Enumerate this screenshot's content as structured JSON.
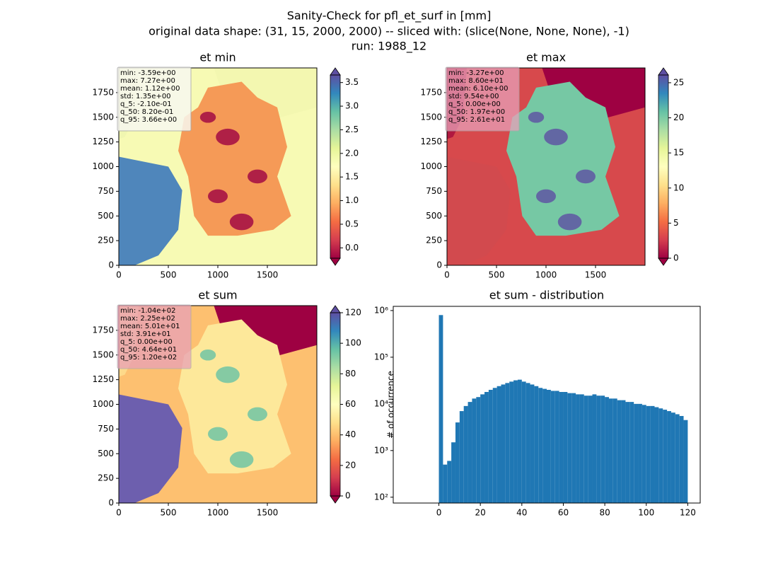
{
  "title": [
    "Sanity-Check for pfl_et_surf in [mm]",
    "original data shape: (31, 15, 2000, 2000) -- sliced with: (slice(None, None, None), -1)",
    "run: 1988_12"
  ],
  "chart_data": [
    {
      "type": "heatmap",
      "title": "et min",
      "colormap": "Spectral",
      "extend": "both",
      "xlim": [
        0,
        2000
      ],
      "ylim": [
        0,
        2000
      ],
      "xticks": [
        0,
        500,
        1000,
        1500
      ],
      "yticks": [
        0,
        250,
        500,
        750,
        1000,
        1250,
        1500,
        1750
      ],
      "clim": [
        -0.22,
        3.66
      ],
      "cticks": [
        {
          "value": 0,
          "label": "0.0"
        },
        {
          "value": 0.5,
          "label": "0.5"
        },
        {
          "value": 1,
          "label": "1.0"
        },
        {
          "value": 1.5,
          "label": "1.5"
        },
        {
          "value": 2,
          "label": "2.0"
        },
        {
          "value": 2.5,
          "label": "2.5"
        },
        {
          "value": 3,
          "label": "3.0"
        },
        {
          "value": 3.5,
          "label": "3.5"
        }
      ],
      "stats": [
        "min: -3.59e+00",
        "max: 7.27e+00",
        "mean: 1.12e+00",
        "std: 1.35e+00",
        "q_5: -2.10e-01",
        "q_50: 8.20e-01",
        "q_95: 3.66e+00"
      ]
    },
    {
      "type": "heatmap",
      "title": "et max",
      "colormap": "Spectral",
      "extend": "both",
      "xlim": [
        0,
        2000
      ],
      "ylim": [
        0,
        2000
      ],
      "xticks": [
        0,
        500,
        1000,
        1500
      ],
      "yticks": [
        0,
        250,
        500,
        750,
        1000,
        1250,
        1500,
        1750
      ],
      "clim": [
        0,
        26.1
      ],
      "cticks": [
        0,
        5,
        10,
        15,
        20,
        25
      ],
      "stats": [
        "min: -3.27e+00",
        "max: 8.60e+01",
        "mean: 6.10e+00",
        "std: 9.54e+00",
        "q_5: 0.00e+00",
        "q_50: 1.97e+00",
        "q_95: 2.61e+01"
      ]
    },
    {
      "type": "heatmap",
      "title": "et sum",
      "colormap": "Spectral",
      "extend": "both",
      "xlim": [
        0,
        2000
      ],
      "ylim": [
        0,
        2000
      ],
      "xticks": [
        0,
        500,
        1000,
        1500
      ],
      "yticks": [
        0,
        250,
        500,
        750,
        1000,
        1250,
        1500,
        1750
      ],
      "clim": [
        0,
        120
      ],
      "cticks": [
        0,
        20,
        40,
        60,
        80,
        100,
        120
      ],
      "stats": [
        "min: -1.04e+02",
        "max: 2.25e+02",
        "mean: 5.01e+01",
        "std: 3.91e+01",
        "q_5: 0.00e+00",
        "q_50: 4.64e+01",
        "q_95: 1.20e+02"
      ]
    },
    {
      "type": "histogram",
      "title": "et sum - distribution",
      "ylabel": "# of occurrence",
      "color": "#1f77b4",
      "log_y": true,
      "xlim": [
        -22,
        126
      ],
      "ylim": [
        75,
        1230000
      ],
      "xticks": [
        0,
        20,
        40,
        60,
        80,
        100,
        120
      ],
      "yticks": [
        {
          "value": 100,
          "label": "10²"
        },
        {
          "value": 1000,
          "label": "10³"
        },
        {
          "value": 10000,
          "label": "10⁴"
        },
        {
          "value": 100000,
          "label": "10⁵"
        },
        {
          "value": 1000000,
          "label": "10⁶"
        }
      ],
      "bins": [
        0,
        2,
        4,
        6,
        8,
        10,
        12,
        14,
        16,
        18,
        20,
        22,
        24,
        26,
        28,
        30,
        32,
        34,
        36,
        38,
        40,
        42,
        44,
        46,
        48,
        50,
        52,
        54,
        56,
        58,
        60,
        62,
        64,
        66,
        68,
        70,
        72,
        74,
        76,
        78,
        80,
        82,
        84,
        86,
        88,
        90,
        92,
        94,
        96,
        98,
        100,
        102,
        104,
        106,
        108,
        110,
        112,
        114,
        116,
        118,
        120
      ],
      "counts": [
        800000,
        500,
        600,
        1500,
        4000,
        7000,
        9000,
        11000,
        13000,
        14000,
        16000,
        18000,
        20000,
        22000,
        24000,
        26000,
        28000,
        30000,
        32000,
        33000,
        30000,
        28000,
        26000,
        24000,
        22000,
        21000,
        20000,
        19000,
        19000,
        18000,
        18000,
        17000,
        17000,
        16000,
        16000,
        15000,
        15000,
        16000,
        15000,
        15000,
        14000,
        13000,
        13000,
        12000,
        12000,
        11000,
        11000,
        10000,
        10000,
        9500,
        9000,
        9000,
        8500,
        8000,
        7500,
        7000,
        6500,
        6000,
        5500,
        4500
      ]
    }
  ]
}
